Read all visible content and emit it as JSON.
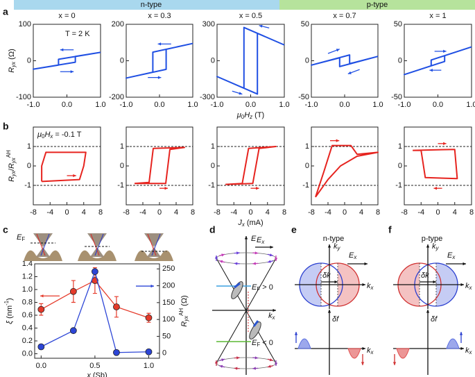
{
  "panel_labels": [
    "a",
    "b",
    "c",
    "d",
    "e",
    "f"
  ],
  "header": {
    "left": "n-type",
    "right": "p-type"
  },
  "chart_data": [
    {
      "type": "line",
      "title": "x = 0",
      "annotation": "T = 2 K",
      "ylabel": [
        "R",
        "yx",
        " (Ω)"
      ],
      "x": [
        1,
        -0.25,
        -0.25,
        -1,
        0.25,
        0.25,
        1
      ],
      "series": [
        {
          "color": "#1f4fe3",
          "values": [
            23,
            4,
            -12,
            -23,
            -4,
            12,
            23
          ]
        }
      ],
      "xlim": [
        -1,
        1
      ],
      "xticks": [
        {
          "value": -1,
          "label": "-1.0"
        },
        {
          "value": 0,
          "label": "0.0"
        },
        {
          "value": 1,
          "label": "1.0"
        }
      ],
      "ylim": [
        -100,
        100
      ],
      "yticks": [
        -100,
        0,
        100
      ]
    },
    {
      "type": "line",
      "title": "x = 0.3",
      "x": [
        1,
        -0.2,
        -0.2,
        -1,
        0.2,
        0.2,
        1
      ],
      "series": [
        {
          "color": "#1f4fe3",
          "values": [
            95,
            47,
            -63,
            -95,
            -47,
            63,
            95
          ]
        }
      ],
      "xlim": [
        -1,
        1
      ],
      "xticks": [
        {
          "value": -1,
          "label": "-1.0"
        },
        {
          "value": 0,
          "label": "0.0"
        },
        {
          "value": 1,
          "label": "1.0"
        }
      ],
      "ylim": [
        -200,
        200
      ],
      "yticks": [
        -200,
        0,
        200
      ]
    },
    {
      "type": "line",
      "title": "x = 0.5",
      "xlabel": [
        "μ",
        "0",
        "H",
        "z",
        " (T)"
      ],
      "x": [
        1,
        -0.2,
        -0.2,
        -1,
        0.2,
        0.2,
        1
      ],
      "series": [
        {
          "color": "#1f4fe3",
          "values": [
            130,
            274,
            -226,
            -130,
            -274,
            226,
            130
          ]
        }
      ],
      "xlim": [
        -1,
        1
      ],
      "xticks": [
        {
          "value": -1,
          "label": "-1.0"
        },
        {
          "value": 0,
          "label": "0.0"
        },
        {
          "value": 1,
          "label": "1.0"
        }
      ],
      "ylim": [
        -300,
        300
      ],
      "yticks": [
        -300,
        0,
        300
      ]
    },
    {
      "type": "line",
      "title": "x = 0.7",
      "x": [
        1,
        -0.15,
        -0.15,
        -1,
        0.15,
        0.15,
        1
      ],
      "series": [
        {
          "color": "#1f4fe3",
          "values": [
            6,
            -8,
            4,
            -6,
            8,
            -4,
            6
          ]
        }
      ],
      "xlim": [
        -1,
        1
      ],
      "xticks": [
        {
          "value": -1,
          "label": "-1.0"
        },
        {
          "value": 0,
          "label": "0.0"
        },
        {
          "value": 1,
          "label": "1.0"
        }
      ],
      "ylim": [
        -50,
        50
      ],
      "yticks": [
        -50,
        0,
        50
      ]
    },
    {
      "type": "line",
      "title": "x = 1",
      "x": [
        1,
        -0.2,
        -0.2,
        -1,
        0.2,
        0.2,
        1
      ],
      "series": [
        {
          "color": "#1f4fe3",
          "values": [
            19,
            1,
            -7,
            -19,
            -1,
            7,
            19
          ]
        }
      ],
      "xlim": [
        -1,
        1
      ],
      "xticks": [
        {
          "value": -1,
          "label": "-1.0"
        },
        {
          "value": 0,
          "label": "0.0"
        },
        {
          "value": 1,
          "label": "1.0"
        }
      ],
      "ylim": [
        -50,
        50
      ],
      "yticks": [
        -50,
        0,
        50
      ]
    },
    {
      "type": "line",
      "annotation": [
        "μ",
        "0",
        "H",
        "x",
        " = -0.1 T"
      ],
      "ylabel": [
        "R",
        "yx",
        "/",
        "R",
        "yx",
        "AH"
      ],
      "x": [
        -6,
        3,
        4,
        4.5,
        -5,
        -6,
        -6
      ],
      "series": [
        {
          "color": "#e6231e",
          "values": [
            -0.8,
            -0.7,
            0,
            0.7,
            0.7,
            0,
            -0.8
          ]
        }
      ],
      "xlim": [
        -8,
        8
      ],
      "xticks": [
        -8,
        -4,
        0,
        4,
        8
      ],
      "ylim": [
        -2,
        2
      ],
      "yticks": [
        -1,
        0,
        1
      ],
      "hlines": [
        -1,
        1
      ]
    },
    {
      "type": "line",
      "x": [
        -6,
        1.5,
        2.5,
        6,
        -1.5,
        -2.5,
        -6
      ],
      "series": [
        {
          "color": "#e6231e",
          "values": [
            -0.9,
            -0.9,
            0.85,
            0.95,
            0.9,
            -0.85,
            -0.9
          ]
        }
      ],
      "xlim": [
        -8,
        8
      ],
      "xticks": [
        -8,
        -4,
        0,
        4,
        8
      ],
      "ylim": [
        -2,
        2
      ],
      "yticks": [
        -1,
        0,
        1
      ],
      "hlines": [
        -1,
        1
      ]
    },
    {
      "type": "line",
      "xlabel": [
        "J",
        "x",
        " (mA)"
      ],
      "x": [
        -6,
        0.5,
        2,
        6,
        -0.5,
        -2,
        -6
      ],
      "series": [
        {
          "color": "#e6231e",
          "values": [
            -0.95,
            -0.9,
            0.9,
            1,
            0.9,
            -0.9,
            -0.95
          ]
        }
      ],
      "xlim": [
        -8,
        8
      ],
      "xticks": [
        -8,
        -4,
        0,
        4,
        8
      ],
      "ylim": [
        -2,
        2
      ],
      "yticks": [
        -1,
        0,
        1
      ],
      "hlines": [
        -1,
        1
      ]
    },
    {
      "type": "line",
      "x": [
        -7,
        -5,
        -3,
        1.5,
        3,
        8,
        3,
        -1,
        -4,
        -7
      ],
      "series": [
        {
          "color": "#e6231e",
          "values": [
            -1.6,
            -0.3,
            1.05,
            1.05,
            0.6,
            0.7,
            0.5,
            0,
            -0.7,
            -1.6
          ]
        }
      ],
      "xlim": [
        -8,
        8
      ],
      "xticks": [
        -8,
        -4,
        0,
        4,
        8
      ],
      "ylim": [
        -2,
        2
      ],
      "yticks": [
        -1,
        0,
        1
      ],
      "hlines": [
        -1,
        1
      ]
    },
    {
      "type": "line",
      "x": [
        -6,
        4,
        4.6,
        -3,
        -4,
        -6
      ],
      "series": [
        {
          "color": "#e6231e",
          "values": [
            0.8,
            0.85,
            -0.65,
            -0.6,
            0.8,
            0.8
          ]
        }
      ],
      "xlim": [
        -8,
        8
      ],
      "xticks": [
        -8,
        -4,
        0,
        4,
        8
      ],
      "ylim": [
        -2,
        2
      ],
      "yticks": [
        -1,
        0,
        1
      ],
      "hlines": [
        -1,
        1
      ]
    },
    {
      "type": "line",
      "x": [
        0,
        0.3,
        0.5,
        0.7,
        1.0
      ],
      "xlim": [
        -0.06,
        1.1
      ],
      "xticks": [
        {
          "value": 0,
          "label": "0.0"
        },
        {
          "value": 0.5,
          "label": "0.5"
        },
        {
          "value": 1,
          "label": "1.0"
        }
      ],
      "xlabel": [
        "x",
        " (Sb)"
      ],
      "ylabel": [
        "ξ",
        " (nm",
        "-1",
        ")"
      ],
      "y2label": [
        "R",
        "yx",
        "AH",
        " (Ω)"
      ],
      "ylim": [
        -0.07,
        1.4
      ],
      "yticks": [
        {
          "value": 0,
          "label": "0.0"
        },
        {
          "value": 0.2,
          "label": "0.2"
        },
        {
          "value": 0.4,
          "label": "0.4"
        },
        {
          "value": 0.6,
          "label": "0.6"
        },
        {
          "value": 0.8,
          "label": "0.8"
        },
        {
          "value": 1,
          "label": "1.0"
        },
        {
          "value": 1.2,
          "label": "1.2"
        },
        {
          "value": 1.4,
          "label": "1.4"
        }
      ],
      "y2lim": [
        -15,
        265
      ],
      "y2ticks": [
        0,
        50,
        100,
        150,
        200,
        250
      ],
      "series": [
        {
          "color": "#e53a2a",
          "values": [
            0.69,
            0.97,
            1.14,
            0.73,
            0.56
          ],
          "errors": [
            0.09,
            0.17,
            0.2,
            0.16,
            0.07
          ]
        },
        {
          "color": "#2c45d6",
          "values": [
            19,
            67,
            242,
            2,
            4
          ],
          "axis": "y2"
        }
      ]
    }
  ],
  "diagram_c": {
    "fermi_label": [
      "E",
      "F"
    ]
  },
  "diagram_d": {
    "energy_axis": "E",
    "field": [
      "E",
      "x"
    ],
    "k_axis": [
      "k",
      "x"
    ],
    "ef_positive": [
      "E",
      "F",
      " > 0"
    ],
    "ef_negative": [
      "E",
      "F",
      " < 0"
    ]
  },
  "diagram_e": {
    "title": "n-type",
    "ky": [
      "k",
      "y"
    ],
    "field": [
      "E",
      "x"
    ],
    "dk": "δk",
    "kx": [
      "k",
      "x"
    ],
    "df": "δf",
    "kx2": [
      "k",
      "x"
    ]
  },
  "diagram_f": {
    "title": "p-type",
    "ky": [
      "k",
      "y"
    ],
    "field": [
      "E",
      "x"
    ],
    "dk": "δk",
    "kx": [
      "k",
      "x"
    ],
    "df": "δf",
    "kx2": [
      "k",
      "x"
    ]
  }
}
